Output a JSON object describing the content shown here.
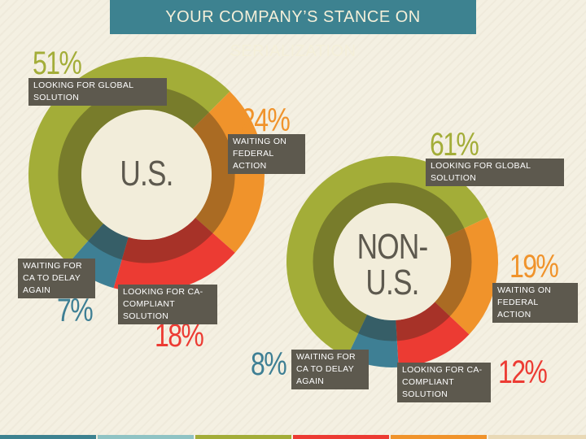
{
  "title": "YOUR COMPANY’S STANCE ON SERIALIZATION",
  "chart_data": [
    {
      "type": "donut",
      "center_label": "U.S.",
      "categories": [
        "LOOKING FOR GLOBAL SOLUTION",
        "WAITING ON FEDERAL ACTION",
        "LOOKING FOR CA-COMPLIANT SOLUTION",
        "WAITING FOR CA TO DELAY AGAIN"
      ],
      "values": [
        51,
        24,
        18,
        7
      ],
      "value_labels": [
        "51%",
        "24%",
        "18%",
        "7%"
      ],
      "colors": [
        "#a3ad38",
        "#f0932b",
        "#ec3b33",
        "#3e7f94"
      ]
    },
    {
      "type": "donut",
      "center_label": "NON-U.S.",
      "categories": [
        "LOOKING FOR GLOBAL SOLUTION",
        "WAITING ON FEDERAL ACTION",
        "LOOKING FOR CA-COMPLIANT SOLUTION",
        "WAITING FOR CA TO DELAY AGAIN"
      ],
      "values": [
        61,
        19,
        12,
        8
      ],
      "value_labels": [
        "61%",
        "19%",
        "12%",
        "8%"
      ],
      "colors": [
        "#a3ad38",
        "#f0932b",
        "#ec3b33",
        "#3e7f94"
      ]
    }
  ]
}
